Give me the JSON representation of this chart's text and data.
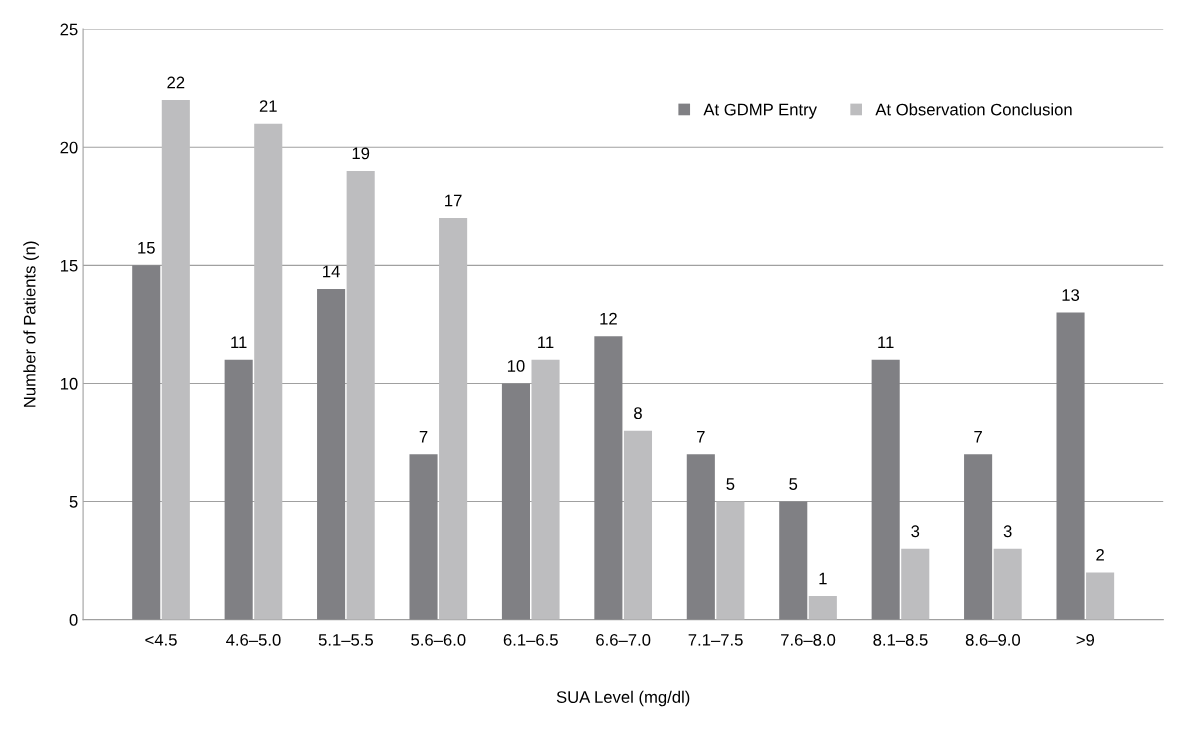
{
  "chart_data": {
    "type": "bar",
    "xlabel": "SUA Level (mg/dl)",
    "ylabel": "Number of Patients (n)",
    "categories": [
      "<4.5",
      "4.6–5.0",
      "5.1–5.5",
      "5.6–6.0",
      "6.1–6.5",
      "6.6–7.0",
      "7.1–7.5",
      "7.6–8.0",
      "8.1–8.5",
      "8.6–9.0",
      ">9"
    ],
    "series": [
      {
        "name": "At GDMP Entry",
        "color": "#808084",
        "values": [
          15,
          11,
          14,
          7,
          10,
          12,
          7,
          5,
          11,
          7,
          13
        ]
      },
      {
        "name": "At Observation Conclusion",
        "color": "#bdbdbf",
        "values": [
          22,
          21,
          19,
          17,
          11,
          8,
          5,
          1,
          3,
          3,
          2
        ]
      }
    ],
    "ylim": [
      0,
      25
    ],
    "yticks": [
      0,
      5,
      10,
      15,
      20,
      25
    ],
    "grid": "y",
    "legend": "top right",
    "data_labels": true
  }
}
